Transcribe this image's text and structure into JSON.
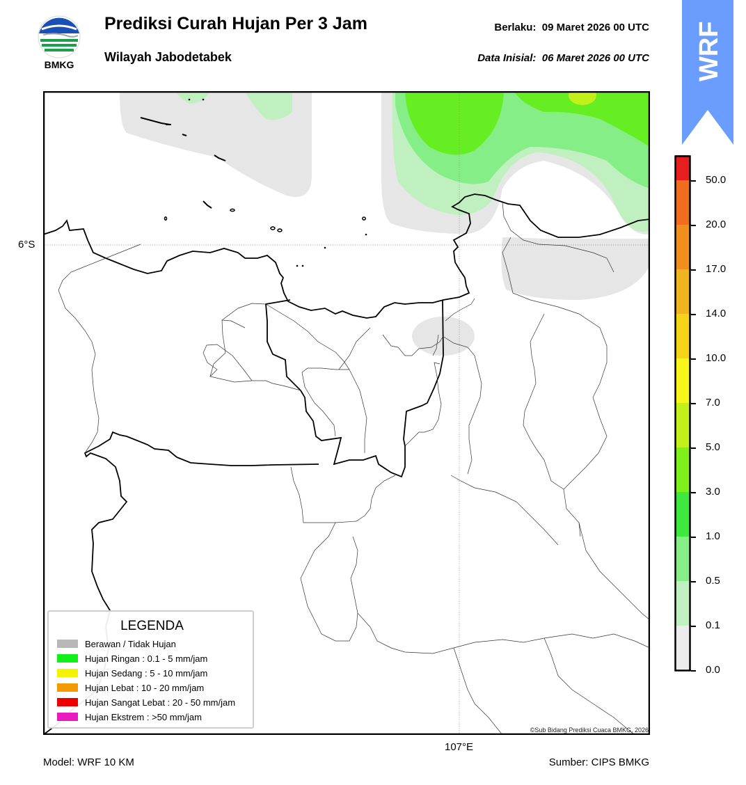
{
  "header": {
    "title": "Prediksi Curah Hujan Per 3 Jam",
    "subtitle": "Wilayah Jabodetabek",
    "valid_label": "Berlaku:",
    "valid_value": "09 Maret 2026 00 UTC",
    "init_label": "Data Inisial:",
    "init_value": "06 Maret 2026 00 UTC"
  },
  "logo": {
    "text": "BMKG",
    "icon": "bmkg-logo"
  },
  "badge": {
    "text": "WRF",
    "color": "#6a9dff"
  },
  "map": {
    "lat_label": "6°S",
    "lon_label": "107°E",
    "copyright": "©Sub Bidang Prediksi Cuaca BMKG, 2026"
  },
  "footer": {
    "model": "Model: WRF 10 KM",
    "source": "Sumber: CIPS BMKG"
  },
  "colorbar": {
    "ticks": [
      "0.0",
      "0.1",
      "0.5",
      "1.0",
      "3.0",
      "5.0",
      "7.0",
      "10.0",
      "14.0",
      "17.0",
      "20.0",
      "50.0"
    ],
    "colors": [
      "#ececec",
      "#c0f0c0",
      "#86ee86",
      "#3ee83e",
      "#7ef01a",
      "#c2f01a",
      "#f6f61a",
      "#f4d418",
      "#f0b41e",
      "#f08e1e",
      "#f06c1e",
      "#e61e1e",
      "#e61ec8"
    ]
  },
  "legend": {
    "title": "LEGENDA",
    "items": [
      {
        "label": "Berawan / Tidak Hujan",
        "color": "#b8b8b8"
      },
      {
        "label": "Hujan Ringan : 0.1 - 5 mm/jam",
        "color": "#11f01a"
      },
      {
        "label": "Hujan Sedang : 5 - 10 mm/jam",
        "color": "#f4f400"
      },
      {
        "label": "Hujan Lebat : 10 - 20 mm/jam",
        "color": "#f49a00"
      },
      {
        "label": "Hujan Sangat Lebat : 20 - 50 mm/jam",
        "color": "#ee0000"
      },
      {
        "label": "Hujan Ekstrem : >50 mm/jam",
        "color": "#e81ac0"
      }
    ]
  }
}
